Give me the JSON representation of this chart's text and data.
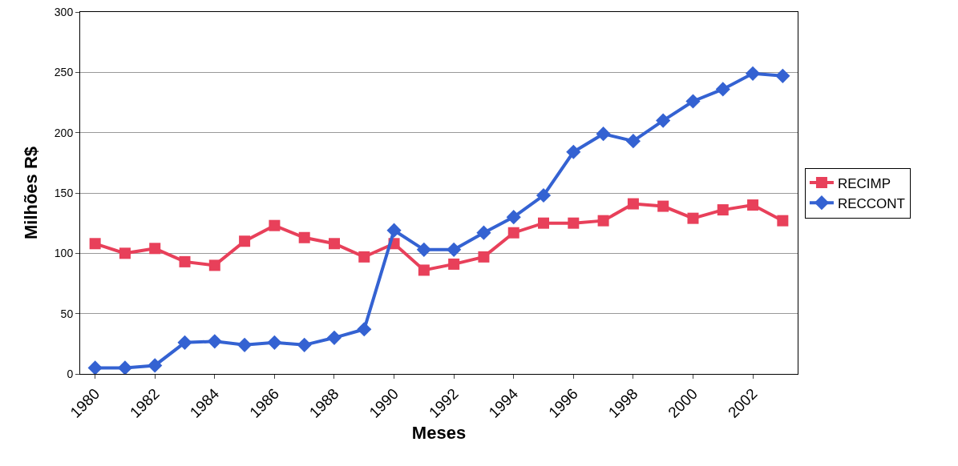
{
  "chart_data": {
    "type": "line",
    "xlabel": "Meses",
    "ylabel": "Milhões R$",
    "categories": [
      "1980",
      null,
      "1982",
      null,
      "1984",
      null,
      "1986",
      null,
      "1988",
      null,
      "1990",
      null,
      "1992",
      null,
      "1994",
      null,
      "1996",
      null,
      "1998",
      null,
      "2000",
      null,
      "2002",
      null
    ],
    "series": [
      {
        "name": "RECIMP",
        "color": "#e8405a",
        "marker": "square",
        "values": [
          108,
          100,
          104,
          93,
          90,
          110,
          123,
          113,
          108,
          97,
          108,
          86,
          91,
          97,
          117,
          125,
          125,
          127,
          141,
          139,
          129,
          136,
          140,
          127
        ]
      },
      {
        "name": "RECCONT",
        "color": "#3462d2",
        "marker": "diamond",
        "values": [
          5,
          5,
          7,
          26,
          27,
          24,
          26,
          24,
          30,
          37,
          119,
          103,
          103,
          117,
          130,
          148,
          184,
          199,
          193,
          210,
          226,
          236,
          249,
          247
        ]
      }
    ],
    "ylim": [
      0,
      300
    ],
    "yticks": [
      0,
      50,
      100,
      150,
      200,
      250,
      300
    ],
    "grid": "y",
    "legend": "right",
    "line_style": "solid"
  }
}
